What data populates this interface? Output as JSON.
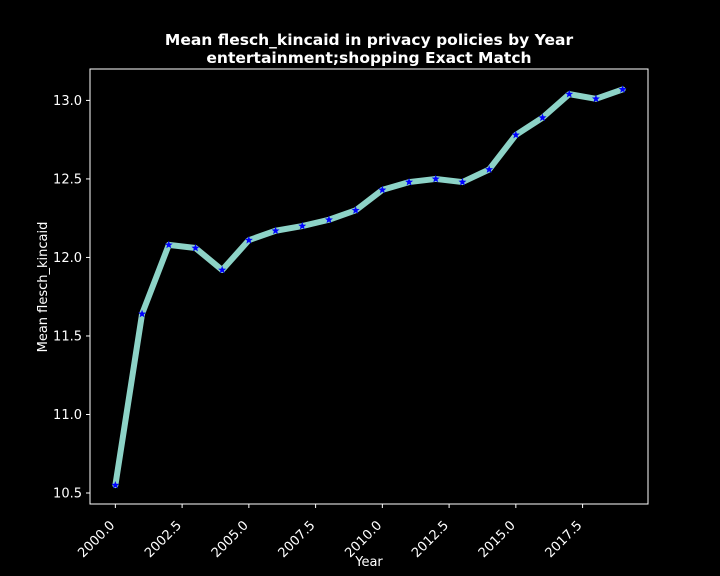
{
  "chart_data": {
    "type": "line",
    "title": "Mean flesch_kincaid in privacy policies by Year",
    "subtitle": "entertainment;shopping Exact Match",
    "xlabel": "Year",
    "ylabel": "Mean flesch_kincaid",
    "xlim": [
      1999.05,
      2019.95
    ],
    "ylim": [
      10.43,
      13.2
    ],
    "xticks": [
      "2000.0",
      "2002.5",
      "2005.0",
      "2007.5",
      "2010.0",
      "2012.5",
      "2015.0",
      "2017.5"
    ],
    "yticks": [
      "10.5",
      "11.0",
      "11.5",
      "12.0",
      "12.5",
      "13.0"
    ],
    "grid": false,
    "marker": "star",
    "colors": {
      "background": "#000000",
      "line": "#8dd3c7",
      "marker": "#0000ff",
      "text": "#ffffff"
    },
    "series": [
      {
        "x": [
          2000,
          2001,
          2002,
          2003,
          2004,
          2005,
          2006,
          2007,
          2008,
          2009,
          2010,
          2011,
          2012,
          2013,
          2014,
          2015,
          2016,
          2017,
          2018,
          2019
        ],
        "values": [
          10.55,
          11.64,
          12.08,
          12.06,
          11.92,
          12.11,
          12.17,
          12.2,
          12.24,
          12.3,
          12.43,
          12.48,
          12.5,
          12.48,
          12.56,
          12.78,
          12.89,
          13.04,
          13.01,
          13.07
        ]
      }
    ]
  }
}
